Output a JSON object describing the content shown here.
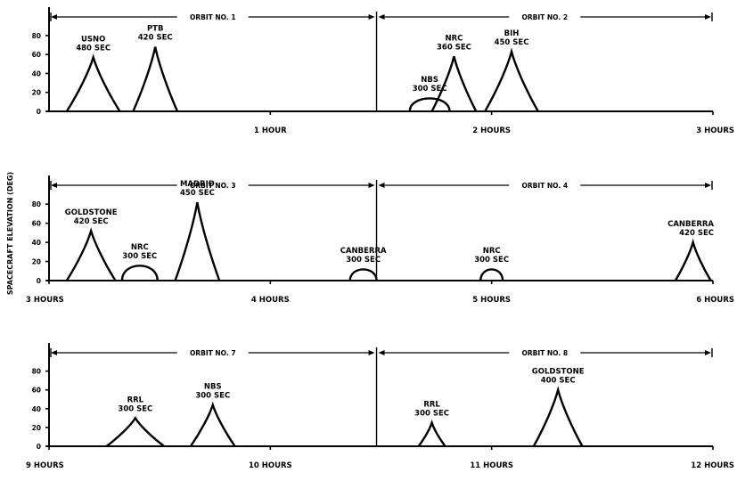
{
  "chart_data": {
    "type": "line",
    "ylabel": "SPACECRAFT ELEVATION (DEG)",
    "yticks": [
      0,
      20,
      40,
      60,
      80
    ],
    "ylim": [
      0,
      110
    ],
    "panels": [
      {
        "xlim": [
          0,
          3
        ],
        "xticks": [
          {
            "x": 1,
            "label": "1 HOUR"
          },
          {
            "x": 2,
            "label": "2 HOURS"
          },
          {
            "x": 3,
            "label": "3 HOURS"
          }
        ],
        "orbits": [
          {
            "label": "ORBIT NO. 1",
            "start": 0,
            "end": 1.48
          },
          {
            "label": "ORBIT NO. 2",
            "start": 1.48,
            "end": 3
          }
        ],
        "passes": [
          {
            "station": "USNO",
            "duration": "480 SEC",
            "t": 0.2,
            "half_width": 0.12,
            "peak": 57,
            "shape": "cusp"
          },
          {
            "station": "PTB",
            "duration": "420 SEC",
            "t": 0.48,
            "half_width": 0.1,
            "peak": 68,
            "shape": "cusp"
          },
          {
            "station": "NBS",
            "duration": "300 SEC",
            "t": 1.72,
            "half_width": 0.09,
            "peak": 14,
            "shape": "dome"
          },
          {
            "station": "NRC",
            "duration": "360 SEC",
            "t": 1.83,
            "half_width": 0.1,
            "peak": 58,
            "shape": "cusp"
          },
          {
            "station": "BIH",
            "duration": "450 SEC",
            "t": 2.09,
            "half_width": 0.12,
            "peak": 63,
            "shape": "cusp"
          }
        ]
      },
      {
        "xlim": [
          3,
          6
        ],
        "xticks": [
          {
            "x": 3,
            "label": "3 HOURS"
          },
          {
            "x": 4,
            "label": "4 HOURS"
          },
          {
            "x": 5,
            "label": "5 HOURS"
          },
          {
            "x": 6,
            "label": "6 HOURS"
          }
        ],
        "orbits": [
          {
            "label": "ORBIT NO. 3",
            "start": 3,
            "end": 4.48
          },
          {
            "label": "ORBIT NO. 4",
            "start": 4.48,
            "end": 6
          }
        ],
        "passes": [
          {
            "station": "GOLDSTONE",
            "duration": "420 SEC",
            "t": 3.19,
            "half_width": 0.11,
            "peak": 52,
            "shape": "cusp"
          },
          {
            "station": "NRC",
            "duration": "300 SEC",
            "t": 3.41,
            "half_width": 0.08,
            "peak": 16,
            "shape": "dome"
          },
          {
            "station": "MADRID",
            "duration": "450 SEC",
            "t": 3.67,
            "half_width": 0.1,
            "peak": 82,
            "shape": "cusp"
          },
          {
            "station": "CANBERRA",
            "duration": "300 SEC",
            "t": 4.42,
            "half_width": 0.06,
            "peak": 12,
            "shape": "dome"
          },
          {
            "station": "NRC",
            "duration": "300 SEC",
            "t": 5.0,
            "half_width": 0.05,
            "peak": 12,
            "shape": "dome"
          },
          {
            "station": "CANBERRA",
            "duration": "420 SEC",
            "t": 5.91,
            "half_width": 0.08,
            "peak": 40,
            "shape": "cusp"
          }
        ]
      },
      {
        "xlim": [
          9,
          12
        ],
        "xticks": [
          {
            "x": 9,
            "label": "9 HOURS"
          },
          {
            "x": 10,
            "label": "10 HOURS"
          },
          {
            "x": 11,
            "label": "11 HOURS"
          },
          {
            "x": 12,
            "label": "12 HOURS"
          }
        ],
        "orbits": [
          {
            "label": "ORBIT NO. 7",
            "start": 9,
            "end": 10.48
          },
          {
            "label": "ORBIT NO. 8",
            "start": 10.48,
            "end": 12
          }
        ],
        "passes": [
          {
            "station": "RRL",
            "duration": "300 SEC",
            "t": 9.39,
            "half_width": 0.13,
            "peak": 30,
            "shape": "cusp"
          },
          {
            "station": "NBS",
            "duration": "300 SEC",
            "t": 9.74,
            "half_width": 0.1,
            "peak": 44,
            "shape": "cusp"
          },
          {
            "station": "RRL",
            "duration": "300 SEC",
            "t": 10.73,
            "half_width": 0.06,
            "peak": 25,
            "shape": "cusp"
          },
          {
            "station": "GOLDSTONE",
            "duration": "400 SEC",
            "t": 11.3,
            "half_width": 0.11,
            "peak": 60,
            "shape": "cusp"
          }
        ]
      }
    ]
  }
}
